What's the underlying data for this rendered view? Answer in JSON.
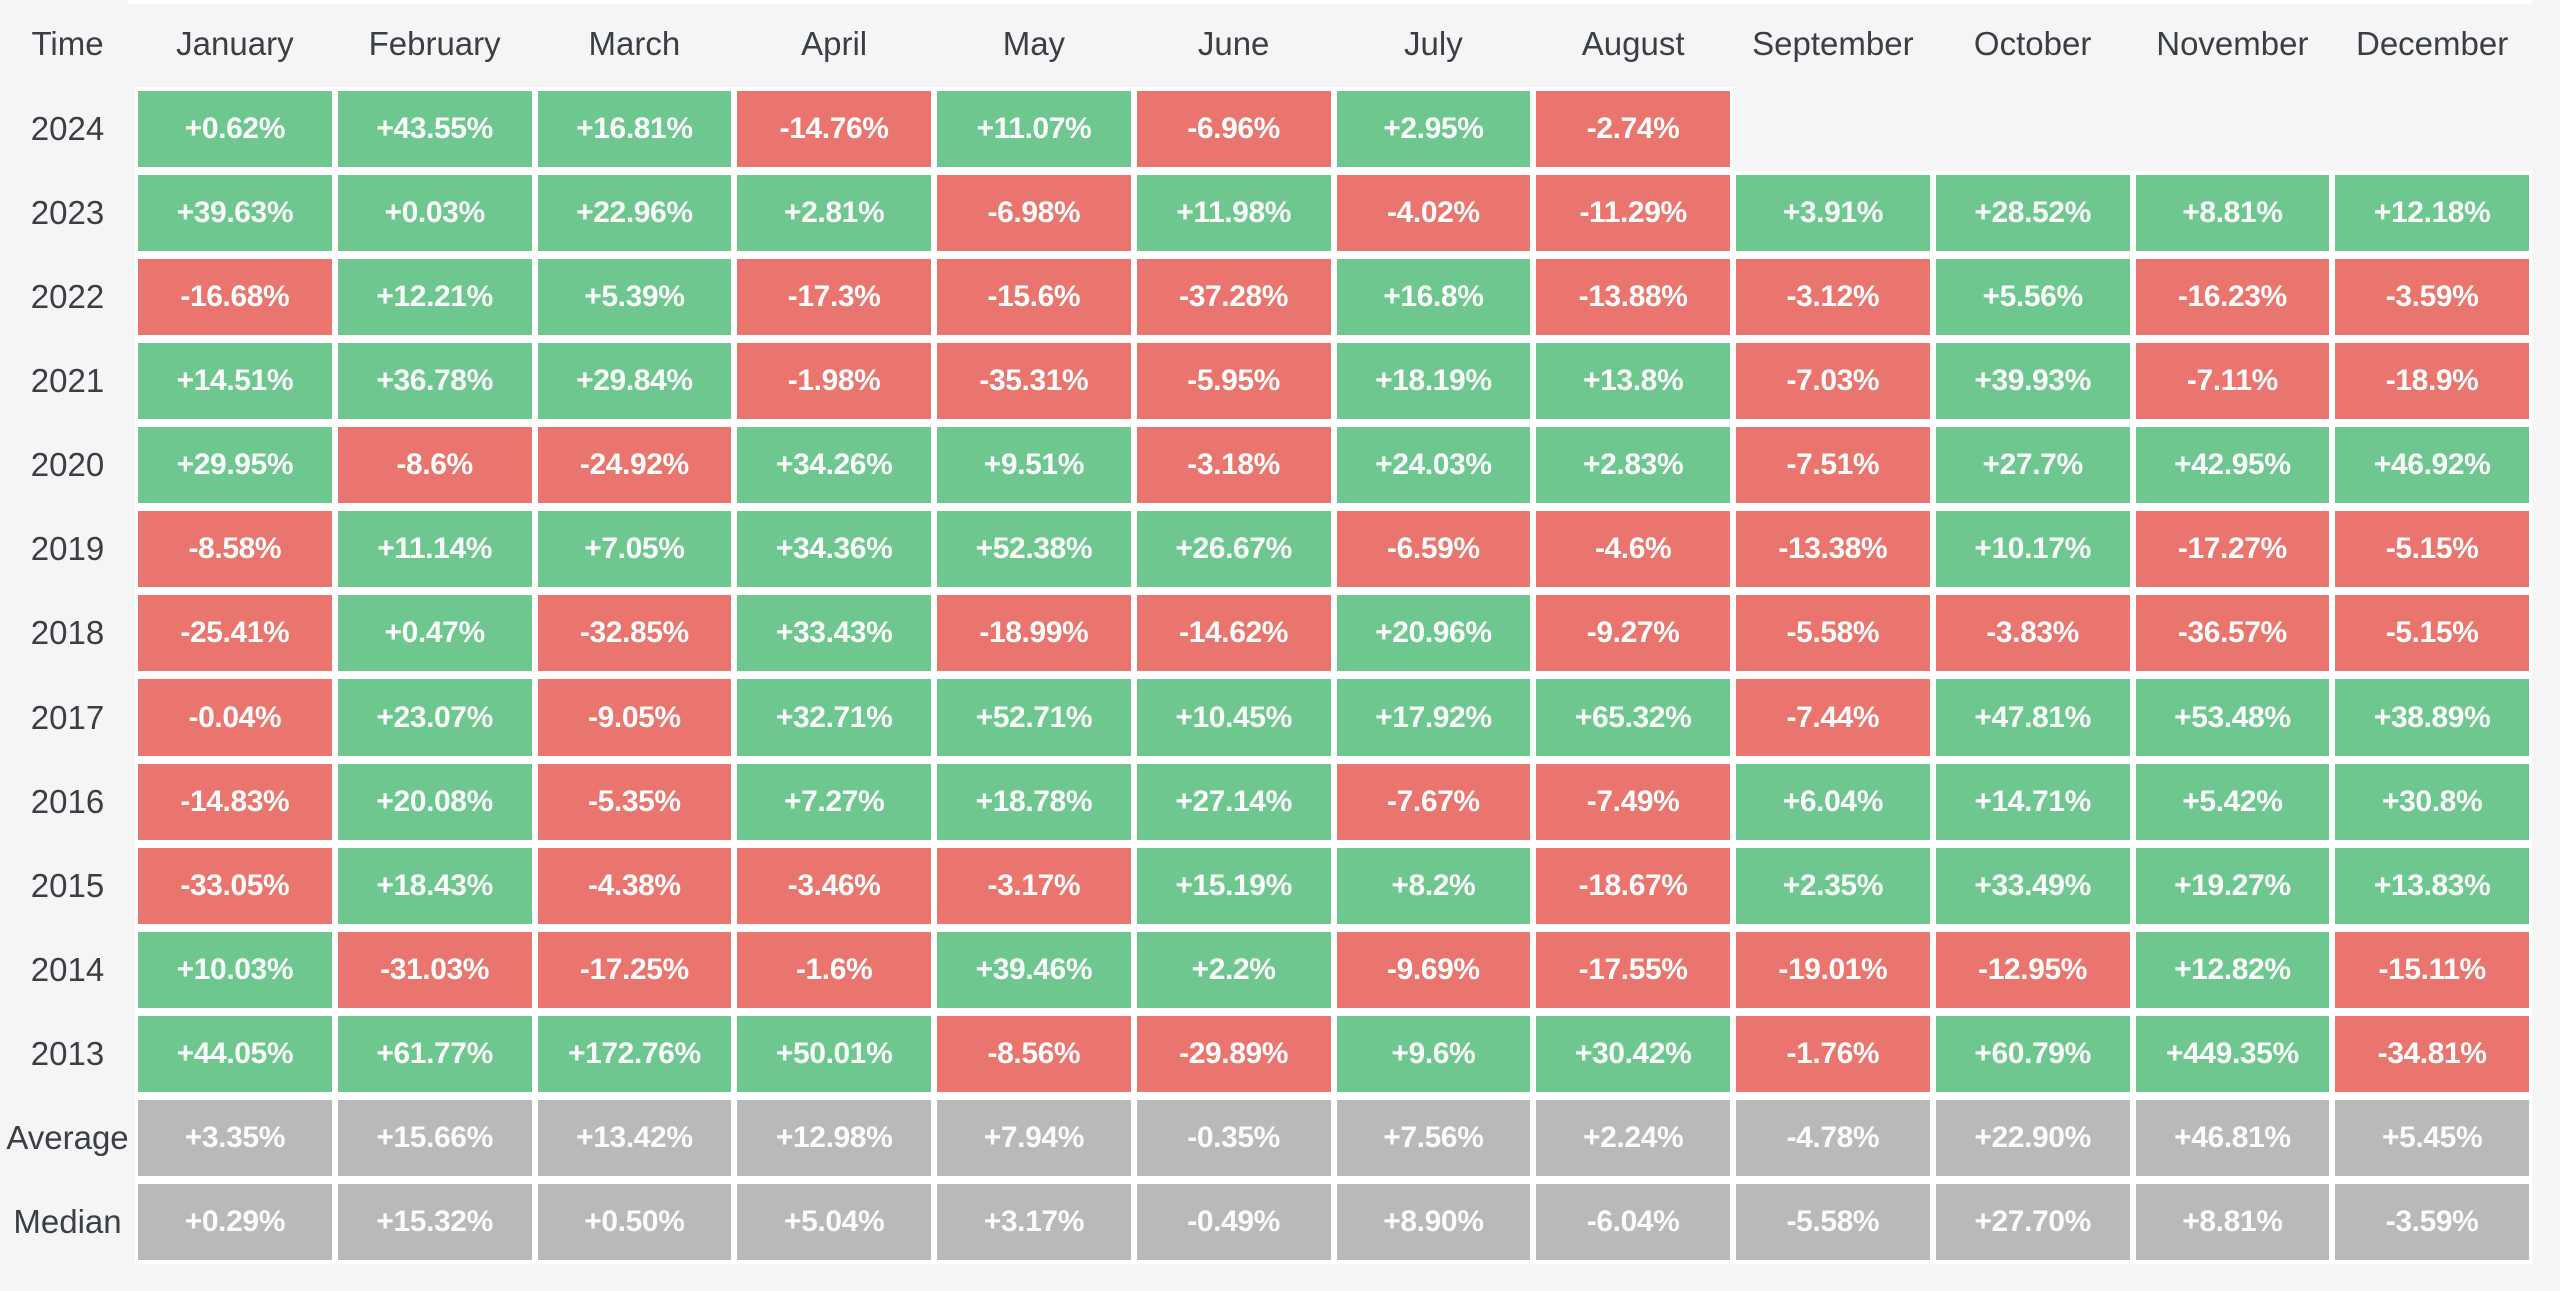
{
  "colors": {
    "background": "#f5f5f6",
    "gap": "#ffffff",
    "positive": "#6ec78f",
    "negative": "#ea746e",
    "neutral": "#b8b9bb",
    "label_text": "#3a3f46",
    "cell_text": "#fafcfb"
  },
  "table": {
    "corner_label": "Time",
    "months": [
      "January",
      "February",
      "March",
      "April",
      "May",
      "June",
      "July",
      "August",
      "September",
      "October",
      "November",
      "December"
    ],
    "rows": [
      {
        "label": "2024",
        "kind": "year",
        "values": [
          "+0.62%",
          "+43.55%",
          "+16.81%",
          "-14.76%",
          "+11.07%",
          "-6.96%",
          "+2.95%",
          "-2.74%",
          null,
          null,
          null,
          null
        ]
      },
      {
        "label": "2023",
        "kind": "year",
        "values": [
          "+39.63%",
          "+0.03%",
          "+22.96%",
          "+2.81%",
          "-6.98%",
          "+11.98%",
          "-4.02%",
          "-11.29%",
          "+3.91%",
          "+28.52%",
          "+8.81%",
          "+12.18%"
        ]
      },
      {
        "label": "2022",
        "kind": "year",
        "values": [
          "-16.68%",
          "+12.21%",
          "+5.39%",
          "-17.3%",
          "-15.6%",
          "-37.28%",
          "+16.8%",
          "-13.88%",
          "-3.12%",
          "+5.56%",
          "-16.23%",
          "-3.59%"
        ]
      },
      {
        "label": "2021",
        "kind": "year",
        "values": [
          "+14.51%",
          "+36.78%",
          "+29.84%",
          "-1.98%",
          "-35.31%",
          "-5.95%",
          "+18.19%",
          "+13.8%",
          "-7.03%",
          "+39.93%",
          "-7.11%",
          "-18.9%"
        ]
      },
      {
        "label": "2020",
        "kind": "year",
        "values": [
          "+29.95%",
          "-8.6%",
          "-24.92%",
          "+34.26%",
          "+9.51%",
          "-3.18%",
          "+24.03%",
          "+2.83%",
          "-7.51%",
          "+27.7%",
          "+42.95%",
          "+46.92%"
        ]
      },
      {
        "label": "2019",
        "kind": "year",
        "values": [
          "-8.58%",
          "+11.14%",
          "+7.05%",
          "+34.36%",
          "+52.38%",
          "+26.67%",
          "-6.59%",
          "-4.6%",
          "-13.38%",
          "+10.17%",
          "-17.27%",
          "-5.15%"
        ]
      },
      {
        "label": "2018",
        "kind": "year",
        "values": [
          "-25.41%",
          "+0.47%",
          "-32.85%",
          "+33.43%",
          "-18.99%",
          "-14.62%",
          "+20.96%",
          "-9.27%",
          "-5.58%",
          "-3.83%",
          "-36.57%",
          "-5.15%"
        ]
      },
      {
        "label": "2017",
        "kind": "year",
        "values": [
          "-0.04%",
          "+23.07%",
          "-9.05%",
          "+32.71%",
          "+52.71%",
          "+10.45%",
          "+17.92%",
          "+65.32%",
          "-7.44%",
          "+47.81%",
          "+53.48%",
          "+38.89%"
        ]
      },
      {
        "label": "2016",
        "kind": "year",
        "values": [
          "-14.83%",
          "+20.08%",
          "-5.35%",
          "+7.27%",
          "+18.78%",
          "+27.14%",
          "-7.67%",
          "-7.49%",
          "+6.04%",
          "+14.71%",
          "+5.42%",
          "+30.8%"
        ]
      },
      {
        "label": "2015",
        "kind": "year",
        "values": [
          "-33.05%",
          "+18.43%",
          "-4.38%",
          "-3.46%",
          "-3.17%",
          "+15.19%",
          "+8.2%",
          "-18.67%",
          "+2.35%",
          "+33.49%",
          "+19.27%",
          "+13.83%"
        ]
      },
      {
        "label": "2014",
        "kind": "year",
        "values": [
          "+10.03%",
          "-31.03%",
          "-17.25%",
          "-1.6%",
          "+39.46%",
          "+2.2%",
          "-9.69%",
          "-17.55%",
          "-19.01%",
          "-12.95%",
          "+12.82%",
          "-15.11%"
        ]
      },
      {
        "label": "2013",
        "kind": "year",
        "values": [
          "+44.05%",
          "+61.77%",
          "+172.76%",
          "+50.01%",
          "-8.56%",
          "-29.89%",
          "+9.6%",
          "+30.42%",
          "-1.76%",
          "+60.79%",
          "+449.35%",
          "-34.81%"
        ]
      },
      {
        "label": "Average",
        "kind": "stat",
        "values": [
          "+3.35%",
          "+15.66%",
          "+13.42%",
          "+12.98%",
          "+7.94%",
          "-0.35%",
          "+7.56%",
          "+2.24%",
          "-4.78%",
          "+22.90%",
          "+46.81%",
          "+5.45%"
        ]
      },
      {
        "label": "Median",
        "kind": "stat",
        "values": [
          "+0.29%",
          "+15.32%",
          "+0.50%",
          "+5.04%",
          "+3.17%",
          "-0.49%",
          "+8.90%",
          "-6.04%",
          "-5.58%",
          "+27.70%",
          "+8.81%",
          "-3.59%"
        ]
      }
    ]
  },
  "chart_data": {
    "type": "heatmap",
    "unit": "percent",
    "x_categories": [
      "January",
      "February",
      "March",
      "April",
      "May",
      "June",
      "July",
      "August",
      "September",
      "October",
      "November",
      "December"
    ],
    "y_categories": [
      "2024",
      "2023",
      "2022",
      "2021",
      "2020",
      "2019",
      "2018",
      "2017",
      "2016",
      "2015",
      "2014",
      "2013",
      "Average",
      "Median"
    ],
    "values": [
      [
        0.62,
        43.55,
        16.81,
        -14.76,
        11.07,
        -6.96,
        2.95,
        -2.74,
        null,
        null,
        null,
        null
      ],
      [
        39.63,
        0.03,
        22.96,
        2.81,
        -6.98,
        11.98,
        -4.02,
        -11.29,
        3.91,
        28.52,
        8.81,
        12.18
      ],
      [
        -16.68,
        12.21,
        5.39,
        -17.3,
        -15.6,
        -37.28,
        16.8,
        -13.88,
        -3.12,
        5.56,
        -16.23,
        -3.59
      ],
      [
        14.51,
        36.78,
        29.84,
        -1.98,
        -35.31,
        -5.95,
        18.19,
        13.8,
        -7.03,
        39.93,
        -7.11,
        -18.9
      ],
      [
        29.95,
        -8.6,
        -24.92,
        34.26,
        9.51,
        -3.18,
        24.03,
        2.83,
        -7.51,
        27.7,
        42.95,
        46.92
      ],
      [
        -8.58,
        11.14,
        7.05,
        34.36,
        52.38,
        26.67,
        -6.59,
        -4.6,
        -13.38,
        10.17,
        -17.27,
        -5.15
      ],
      [
        -25.41,
        0.47,
        -32.85,
        33.43,
        -18.99,
        -14.62,
        20.96,
        -9.27,
        -5.58,
        -3.83,
        -36.57,
        -5.15
      ],
      [
        -0.04,
        23.07,
        -9.05,
        32.71,
        52.71,
        10.45,
        17.92,
        65.32,
        -7.44,
        47.81,
        53.48,
        38.89
      ],
      [
        -14.83,
        20.08,
        -5.35,
        7.27,
        18.78,
        27.14,
        -7.67,
        -7.49,
        6.04,
        14.71,
        5.42,
        30.8
      ],
      [
        -33.05,
        18.43,
        -4.38,
        -3.46,
        -3.17,
        15.19,
        8.2,
        -18.67,
        2.35,
        33.49,
        19.27,
        13.83
      ],
      [
        10.03,
        -31.03,
        -17.25,
        -1.6,
        39.46,
        2.2,
        -9.69,
        -17.55,
        -19.01,
        -12.95,
        12.82,
        -15.11
      ],
      [
        44.05,
        61.77,
        172.76,
        50.01,
        -8.56,
        -29.89,
        9.6,
        30.42,
        -1.76,
        60.79,
        449.35,
        -34.81
      ],
      [
        3.35,
        15.66,
        13.42,
        12.98,
        7.94,
        -0.35,
        7.56,
        2.24,
        -4.78,
        22.9,
        46.81,
        5.45
      ],
      [
        0.29,
        15.32,
        0.5,
        5.04,
        3.17,
        -0.49,
        8.9,
        -6.04,
        -5.58,
        27.7,
        8.81,
        -3.59
      ]
    ],
    "legend": "none",
    "cell_color_rule": "positive=green, negative=red, Average/Median rows=gray"
  }
}
